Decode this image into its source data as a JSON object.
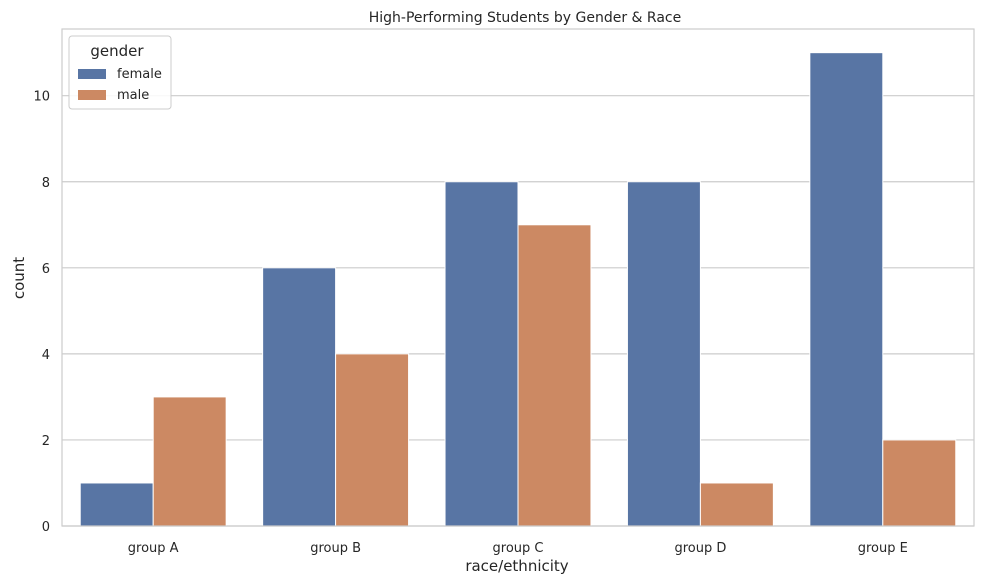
{
  "chart_data": {
    "type": "bar",
    "title": "High-Performing Students by Gender & Race",
    "xlabel": "race/ethnicity",
    "ylabel": "count",
    "categories": [
      "group A",
      "group B",
      "group C",
      "group D",
      "group E"
    ],
    "series": [
      {
        "name": "female",
        "values": [
          1,
          6,
          8,
          8,
          11
        ],
        "color": "#5875a4"
      },
      {
        "name": "male",
        "values": [
          3,
          4,
          7,
          1,
          2
        ],
        "color": "#cc8963"
      }
    ],
    "ylim": [
      0,
      11.55
    ],
    "yticks": [
      0,
      2,
      4,
      6,
      8,
      10
    ],
    "grid": "horizontal",
    "legend": {
      "title": "gender",
      "placement": "top-left"
    }
  }
}
